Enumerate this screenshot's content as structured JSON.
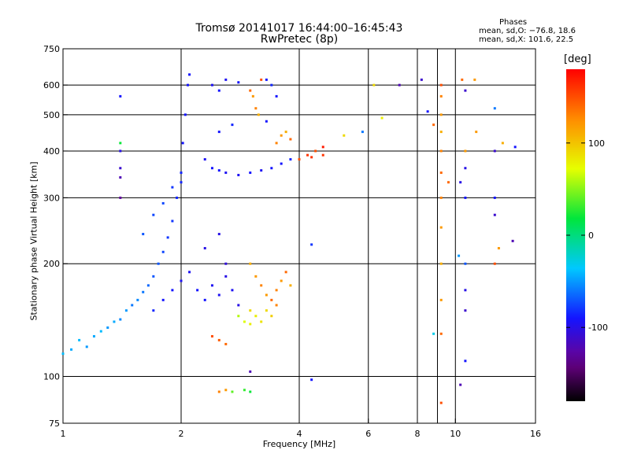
{
  "title_line1": "Tromsø 20141017 16:44:00–16:45:43",
  "title_line2": "RwPretec (8p)",
  "phase_info": {
    "header": "Phases",
    "line_o": "mean, sd,O: −76.8, 18.6",
    "line_x": "mean, sd,X: 101.6, 22.5"
  },
  "colorbar": {
    "unit_label": "[deg]",
    "ticks": [
      "100",
      "0",
      "-100"
    ],
    "tick_values": [
      100,
      0,
      -100
    ],
    "range": [
      -180,
      180
    ],
    "colormap": "rainbow (black-purple-blue-cyan-green-yellow-orange-red)"
  },
  "chart_data": {
    "type": "scatter",
    "xlabel": "Frequency [MHz]",
    "ylabel": "Stationary phase Virtual Height [km]",
    "xscale": "log",
    "yscale": "log",
    "xlim": [
      1,
      16
    ],
    "ylim": [
      75,
      750
    ],
    "xticks": [
      1,
      2,
      4,
      6,
      8,
      10,
      16
    ],
    "xtick_labels": [
      "1",
      "2",
      "4",
      "6",
      "8",
      "10",
      "16"
    ],
    "yticks": [
      75,
      100,
      200,
      300,
      400,
      500,
      600,
      750
    ],
    "ytick_labels": [
      "75",
      "100",
      "200",
      "300",
      "400",
      "500",
      "600",
      "750"
    ],
    "grid_x": [
      2,
      4,
      6,
      8,
      9,
      10
    ],
    "grid_y": [
      100,
      200,
      300,
      400,
      500,
      600
    ],
    "points": [
      [
        1.0,
        115,
        -40
      ],
      [
        1.05,
        118,
        -45
      ],
      [
        1.1,
        125,
        -40
      ],
      [
        1.15,
        120,
        -50
      ],
      [
        1.2,
        128,
        -45
      ],
      [
        1.25,
        132,
        -40
      ],
      [
        1.3,
        135,
        -50
      ],
      [
        1.35,
        140,
        -45
      ],
      [
        1.4,
        142,
        -55
      ],
      [
        1.45,
        150,
        -50
      ],
      [
        1.5,
        155,
        -60
      ],
      [
        1.55,
        160,
        -55
      ],
      [
        1.6,
        168,
        -60
      ],
      [
        1.65,
        175,
        -65
      ],
      [
        1.7,
        185,
        -70
      ],
      [
        1.75,
        200,
        -70
      ],
      [
        1.8,
        215,
        -75
      ],
      [
        1.85,
        235,
        -80
      ],
      [
        1.9,
        260,
        -80
      ],
      [
        1.95,
        300,
        -85
      ],
      [
        2.0,
        350,
        -85
      ],
      [
        2.02,
        420,
        -90
      ],
      [
        2.05,
        500,
        -90
      ],
      [
        2.08,
        600,
        -90
      ],
      [
        2.1,
        640,
        -90
      ],
      [
        1.6,
        240,
        -70
      ],
      [
        1.7,
        270,
        -75
      ],
      [
        1.8,
        290,
        -75
      ],
      [
        1.9,
        320,
        -80
      ],
      [
        2.0,
        330,
        -85
      ],
      [
        1.7,
        150,
        -85
      ],
      [
        1.8,
        160,
        -90
      ],
      [
        1.9,
        170,
        -90
      ],
      [
        2.0,
        180,
        -95
      ],
      [
        2.1,
        190,
        -95
      ],
      [
        2.2,
        170,
        -90
      ],
      [
        2.3,
        160,
        -90
      ],
      [
        2.4,
        175,
        -95
      ],
      [
        2.5,
        165,
        -95
      ],
      [
        2.6,
        185,
        -100
      ],
      [
        2.7,
        170,
        -95
      ],
      [
        2.8,
        155,
        -100
      ],
      [
        2.3,
        220,
        -100
      ],
      [
        2.5,
        240,
        -100
      ],
      [
        2.6,
        200,
        -105
      ],
      [
        2.3,
        380,
        -95
      ],
      [
        2.4,
        360,
        -90
      ],
      [
        2.5,
        355,
        -90
      ],
      [
        2.6,
        350,
        -95
      ],
      [
        2.8,
        345,
        -95
      ],
      [
        3.0,
        350,
        -90
      ],
      [
        3.2,
        355,
        -95
      ],
      [
        3.4,
        360,
        -90
      ],
      [
        3.6,
        370,
        -90
      ],
      [
        3.8,
        380,
        -85
      ],
      [
        2.4,
        600,
        -95
      ],
      [
        2.5,
        580,
        -90
      ],
      [
        2.6,
        620,
        -95
      ],
      [
        2.8,
        610,
        -90
      ],
      [
        3.3,
        620,
        -90
      ],
      [
        3.4,
        600,
        -85
      ],
      [
        3.5,
        560,
        -90
      ],
      [
        2.5,
        450,
        -90
      ],
      [
        2.7,
        470,
        -85
      ],
      [
        3.3,
        480,
        -90
      ],
      [
        3.0,
        580,
        140
      ],
      [
        3.05,
        560,
        120
      ],
      [
        3.1,
        520,
        130
      ],
      [
        3.15,
        500,
        110
      ],
      [
        3.2,
        620,
        150
      ],
      [
        3.5,
        420,
        130
      ],
      [
        3.6,
        440,
        120
      ],
      [
        3.7,
        450,
        110
      ],
      [
        3.8,
        430,
        140
      ],
      [
        4.0,
        380,
        150
      ],
      [
        4.2,
        390,
        160
      ],
      [
        4.4,
        400,
        150
      ],
      [
        4.6,
        410,
        170
      ],
      [
        4.3,
        385,
        160
      ],
      [
        3.0,
        200,
        110
      ],
      [
        3.1,
        185,
        120
      ],
      [
        3.2,
        175,
        130
      ],
      [
        3.3,
        165,
        120
      ],
      [
        3.4,
        160,
        140
      ],
      [
        3.5,
        170,
        130
      ],
      [
        3.6,
        180,
        120
      ],
      [
        3.7,
        190,
        140
      ],
      [
        3.8,
        175,
        110
      ],
      [
        3.5,
        155,
        130
      ],
      [
        3.0,
        150,
        90
      ],
      [
        3.1,
        145,
        80
      ],
      [
        3.2,
        140,
        85
      ],
      [
        3.3,
        150,
        90
      ],
      [
        3.4,
        145,
        95
      ],
      [
        2.8,
        145,
        60
      ],
      [
        2.9,
        140,
        70
      ],
      [
        3.0,
        138,
        80
      ],
      [
        2.4,
        128,
        150
      ],
      [
        2.5,
        125,
        145
      ],
      [
        2.6,
        122,
        140
      ],
      [
        2.5,
        91,
        130
      ],
      [
        2.6,
        92,
        120
      ],
      [
        2.7,
        91,
        40
      ],
      [
        2.9,
        92,
        30
      ],
      [
        3.0,
        91,
        20
      ],
      [
        1.4,
        560,
        -90
      ],
      [
        1.4,
        400,
        -100
      ],
      [
        1.4,
        360,
        -110
      ],
      [
        1.4,
        340,
        -120
      ],
      [
        1.4,
        300,
        -130
      ],
      [
        1.4,
        420,
        20
      ],
      [
        4.3,
        98,
        -90
      ],
      [
        4.3,
        225,
        -80
      ],
      [
        3.0,
        103,
        -120
      ],
      [
        4.6,
        390,
        160
      ],
      [
        5.2,
        440,
        90
      ],
      [
        5.8,
        450,
        -60
      ],
      [
        6.2,
        600,
        90
      ],
      [
        6.5,
        490,
        80
      ],
      [
        7.2,
        600,
        -120
      ],
      [
        8.2,
        620,
        -110
      ],
      [
        8.5,
        510,
        -90
      ],
      [
        9.2,
        600,
        150
      ],
      [
        9.2,
        560,
        130
      ],
      [
        9.2,
        500,
        120
      ],
      [
        9.2,
        450,
        110
      ],
      [
        9.2,
        400,
        130
      ],
      [
        9.2,
        350,
        140
      ],
      [
        9.2,
        300,
        130
      ],
      [
        9.2,
        250,
        120
      ],
      [
        9.2,
        200,
        110
      ],
      [
        9.2,
        160,
        120
      ],
      [
        9.2,
        130,
        140
      ],
      [
        9.2,
        85,
        150
      ],
      [
        8.8,
        130,
        -30
      ],
      [
        10.4,
        620,
        140
      ],
      [
        10.6,
        580,
        -110
      ],
      [
        10.6,
        400,
        120
      ],
      [
        10.6,
        360,
        -100
      ],
      [
        10.6,
        300,
        -90
      ],
      [
        10.6,
        200,
        -70
      ],
      [
        10.6,
        170,
        -100
      ],
      [
        10.6,
        150,
        -110
      ],
      [
        10.6,
        110,
        -90
      ],
      [
        10.3,
        95,
        -120
      ],
      [
        10.2,
        210,
        -50
      ],
      [
        10.3,
        330,
        -100
      ],
      [
        12.6,
        520,
        -60
      ],
      [
        12.6,
        400,
        -110
      ],
      [
        12.6,
        300,
        -90
      ],
      [
        12.6,
        270,
        -110
      ],
      [
        12.6,
        200,
        150
      ],
      [
        12.9,
        220,
        120
      ],
      [
        13.2,
        420,
        110
      ],
      [
        14.0,
        230,
        -120
      ],
      [
        14.2,
        410,
        -90
      ],
      [
        9.6,
        330,
        140
      ],
      [
        8.8,
        470,
        140
      ],
      [
        11.3,
        450,
        120
      ],
      [
        11.2,
        620,
        120
      ]
    ]
  }
}
